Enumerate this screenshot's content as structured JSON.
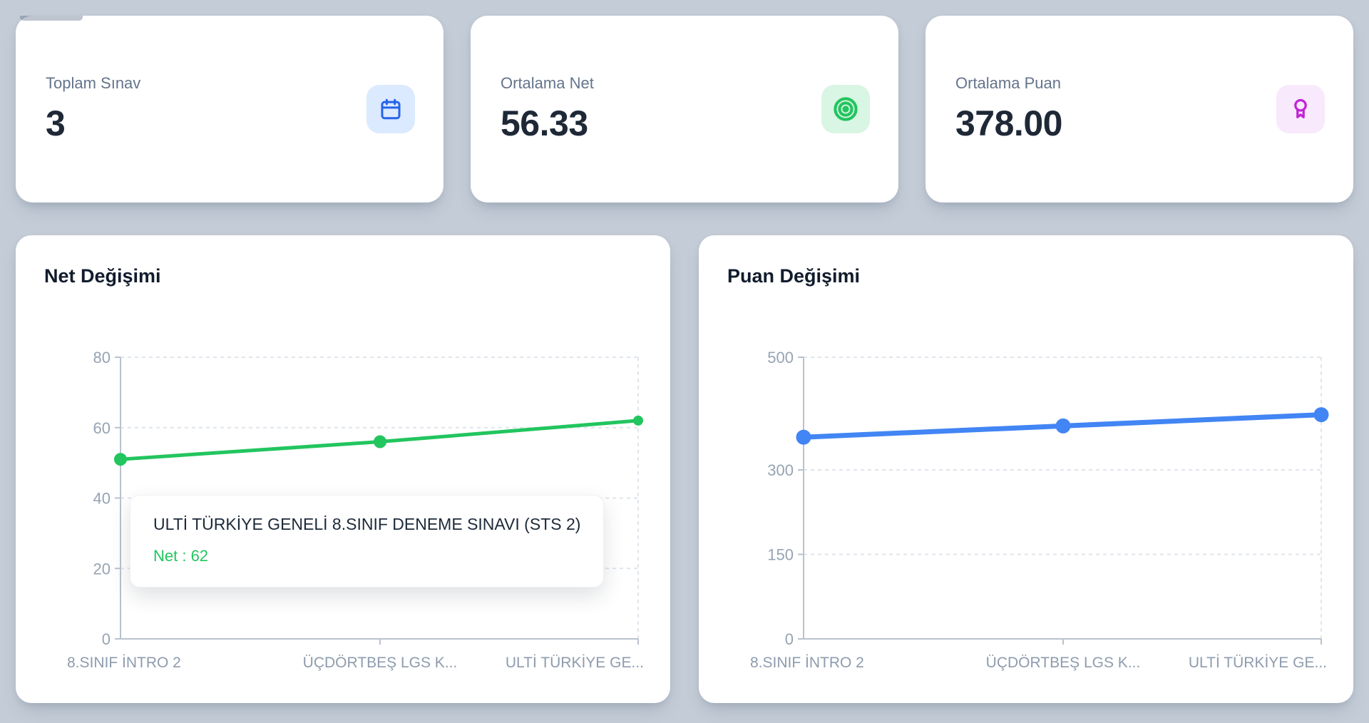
{
  "page": {
    "background": "#c4ccd7"
  },
  "stats": {
    "cards": [
      {
        "label": "Toplam Sınav",
        "value": "3",
        "icon": "calendar-icon",
        "icon_color": "#2563eb",
        "icon_bg": "#dbeafe"
      },
      {
        "label": "Ortalama Net",
        "value": "56.33",
        "icon": "target-icon",
        "icon_color": "#22c55e",
        "icon_bg": "#d9f5e3"
      },
      {
        "label": "Ortalama Puan",
        "value": "378.00",
        "icon": "award-icon",
        "icon_color": "#c026d3",
        "icon_bg": "#f8e9fc"
      }
    ]
  },
  "chart_data": [
    {
      "type": "line",
      "title": "Net Değişimi",
      "categories": [
        "8.SINIF İNTRO 2",
        "ÜÇDÖRTBEŞ LGS K...",
        "ULTİ TÜRKİYE GE..."
      ],
      "series": [
        {
          "name": "Net",
          "values": [
            51,
            56,
            62
          ]
        }
      ],
      "xlabel": "",
      "ylabel": "",
      "ylim": [
        0,
        80
      ],
      "yticks": [
        0,
        20,
        40,
        60,
        80
      ],
      "grid": "horizontal-dashed",
      "legend_position": "none",
      "line_color": "#22c55e",
      "tooltip": {
        "title": "ULTİ TÜRKİYE GENELİ 8.SINIF DENEME SINAVI (STS 2)",
        "label": "Net : 62"
      }
    },
    {
      "type": "line",
      "title": "Puan Değişimi",
      "categories": [
        "8.SINIF İNTRO 2",
        "ÜÇDÖRTBEŞ LGS K...",
        "ULTİ TÜRKİYE GE..."
      ],
      "series": [
        {
          "name": "Puan",
          "values": [
            358,
            378,
            398
          ]
        }
      ],
      "xlabel": "",
      "ylabel": "",
      "ylim": [
        0,
        500
      ],
      "yticks": [
        0,
        150,
        300,
        500
      ],
      "grid": "horizontal-dashed",
      "legend_position": "none",
      "line_color": "#4285f4"
    }
  ]
}
